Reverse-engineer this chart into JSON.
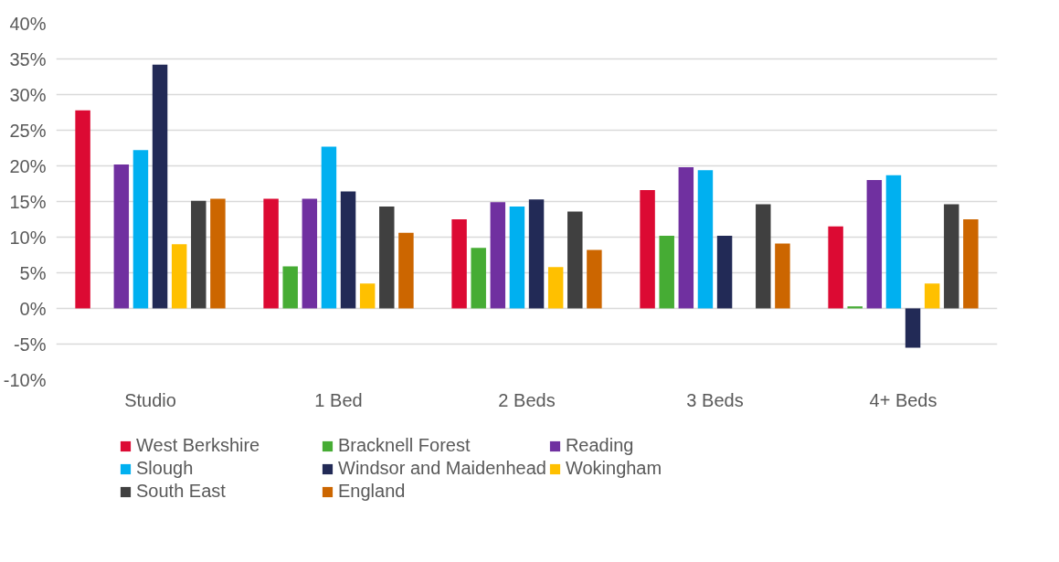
{
  "chart_data": {
    "type": "bar",
    "categories": [
      "Studio",
      "1 Bed",
      "2 Beds",
      "3 Beds",
      "4+ Beds"
    ],
    "series": [
      {
        "name": "West Berkshire",
        "color": "#dc0a33",
        "values": [
          27.8,
          15.4,
          12.5,
          16.6,
          11.5
        ]
      },
      {
        "name": "Bracknell Forest",
        "color": "#46ac34",
        "values": [
          null,
          5.9,
          8.5,
          10.2,
          0.3
        ]
      },
      {
        "name": "Reading",
        "color": "#7030a0",
        "values": [
          20.2,
          15.4,
          14.9,
          19.8,
          18.0
        ]
      },
      {
        "name": "Slough",
        "color": "#00b0f0",
        "values": [
          22.2,
          22.7,
          14.3,
          19.4,
          18.7
        ]
      },
      {
        "name": "Windsor and Maidenhead",
        "color": "#222a56",
        "values": [
          34.2,
          16.4,
          15.3,
          10.2,
          -5.5
        ]
      },
      {
        "name": "Wokingham",
        "color": "#ffc000",
        "values": [
          9.0,
          3.5,
          5.8,
          null,
          3.5
        ]
      },
      {
        "name": "South East",
        "color": "#404040",
        "values": [
          15.1,
          14.3,
          13.6,
          14.6,
          14.6
        ]
      },
      {
        "name": "England",
        "color": "#cc6600",
        "values": [
          15.4,
          10.6,
          8.2,
          9.1,
          12.5
        ]
      }
    ],
    "ylim": [
      -10,
      40
    ],
    "yticks": [
      {
        "value": -10,
        "label": "-10%"
      },
      {
        "value": -5,
        "label": "-5%"
      },
      {
        "value": 0,
        "label": "0%"
      },
      {
        "value": 5,
        "label": "5%"
      },
      {
        "value": 10,
        "label": "10%"
      },
      {
        "value": 15,
        "label": "15%"
      },
      {
        "value": 20,
        "label": "20%"
      },
      {
        "value": 25,
        "label": "25%"
      },
      {
        "value": 30,
        "label": "30%"
      },
      {
        "value": 35,
        "label": "35%"
      },
      {
        "value": 40,
        "label": "40%"
      }
    ],
    "grid": "y",
    "legend": "bottom"
  }
}
